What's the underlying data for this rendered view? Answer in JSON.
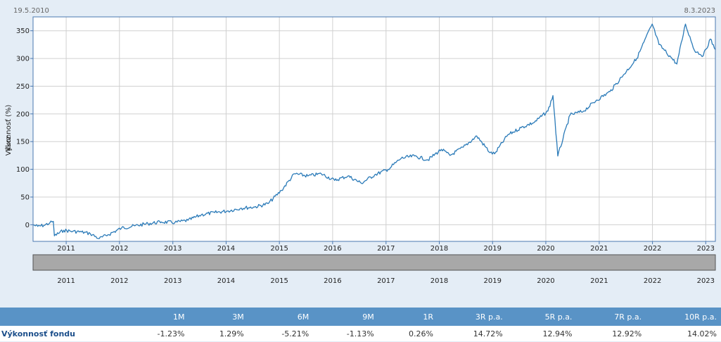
{
  "colors": {
    "background": "#e4edf6",
    "plot_bg": "#ffffff",
    "grid": "#d0d0d0",
    "axis": "#4a78b0",
    "line": "#2a7ab8",
    "navigator": "#a8a8a8",
    "table_header": "#5993c6"
  },
  "chart_data": {
    "type": "line",
    "start_date_label": "19.5.2010",
    "end_date_label": "8.3.2023",
    "ylabel_primary": "Výkonnosť (%)",
    "ylabel_secondary": "Kurz",
    "xlim": [
      "2010-05-19",
      "2023-03-08"
    ],
    "ylim": [
      -30,
      375
    ],
    "y_ticks": [
      0,
      50,
      100,
      150,
      200,
      250,
      300,
      350
    ],
    "x_tick_labels": [
      "2011",
      "2012",
      "2013",
      "2014",
      "2015",
      "2016",
      "2017",
      "2018",
      "2019",
      "2020",
      "2021",
      "2022",
      "2023"
    ],
    "grid": true,
    "series": [
      {
        "points": [
          [
            "2010-05-19",
            0
          ],
          [
            "2010-06-20",
            -3
          ],
          [
            "2010-08-01",
            -1
          ],
          [
            "2010-09-10",
            3
          ],
          [
            "2010-10-05",
            6
          ],
          [
            "2010-10-12",
            -20
          ],
          [
            "2010-12-15",
            -10
          ],
          [
            "2011-02-15",
            -12
          ],
          [
            "2011-04-15",
            -13
          ],
          [
            "2011-06-15",
            -16
          ],
          [
            "2011-08-15",
            -25
          ],
          [
            "2011-10-15",
            -18
          ],
          [
            "2012-01-15",
            -6
          ],
          [
            "2012-04-15",
            -2
          ],
          [
            "2012-07-15",
            2
          ],
          [
            "2012-10-15",
            5
          ],
          [
            "2013-01-15",
            4
          ],
          [
            "2013-04-15",
            8
          ],
          [
            "2013-07-15",
            18
          ],
          [
            "2013-10-15",
            22
          ],
          [
            "2014-01-15",
            25
          ],
          [
            "2014-04-15",
            30
          ],
          [
            "2014-07-15",
            32
          ],
          [
            "2014-10-15",
            38
          ],
          [
            "2015-01-15",
            62
          ],
          [
            "2015-04-15",
            92
          ],
          [
            "2015-07-15",
            88
          ],
          [
            "2015-10-15",
            92
          ],
          [
            "2016-01-15",
            80
          ],
          [
            "2016-04-15",
            88
          ],
          [
            "2016-07-15",
            75
          ],
          [
            "2016-10-15",
            90
          ],
          [
            "2017-01-15",
            100
          ],
          [
            "2017-04-15",
            120
          ],
          [
            "2017-07-15",
            124
          ],
          [
            "2017-10-15",
            117
          ],
          [
            "2018-01-15",
            136
          ],
          [
            "2018-03-15",
            125
          ],
          [
            "2018-06-15",
            140
          ],
          [
            "2018-09-15",
            160
          ],
          [
            "2018-12-15",
            130
          ],
          [
            "2019-01-15",
            128
          ],
          [
            "2019-04-15",
            162
          ],
          [
            "2019-07-15",
            175
          ],
          [
            "2019-10-15",
            185
          ],
          [
            "2020-01-15",
            205
          ],
          [
            "2020-02-19",
            233
          ],
          [
            "2020-03-23",
            124
          ],
          [
            "2020-06-15",
            198
          ],
          [
            "2020-09-15",
            205
          ],
          [
            "2020-12-15",
            225
          ],
          [
            "2021-03-15",
            240
          ],
          [
            "2021-06-15",
            270
          ],
          [
            "2021-09-15",
            300
          ],
          [
            "2021-12-30",
            362
          ],
          [
            "2022-02-15",
            325
          ],
          [
            "2022-05-15",
            300
          ],
          [
            "2022-06-17",
            290
          ],
          [
            "2022-08-15",
            362
          ],
          [
            "2022-10-15",
            315
          ],
          [
            "2022-12-15",
            305
          ],
          [
            "2023-02-01",
            335
          ],
          [
            "2023-03-08",
            316
          ]
        ]
      }
    ]
  },
  "performance": {
    "row_label": "Výkonnosť fondu",
    "columns": [
      "1M",
      "3M",
      "6M",
      "9M",
      "1R",
      "3R p.a.",
      "5R p.a.",
      "7R p.a.",
      "10R p.a."
    ],
    "values": [
      "-1.23%",
      "1.29%",
      "-5.21%",
      "-1.13%",
      "0.26%",
      "14.72%",
      "12.94%",
      "12.92%",
      "14.02%"
    ]
  }
}
